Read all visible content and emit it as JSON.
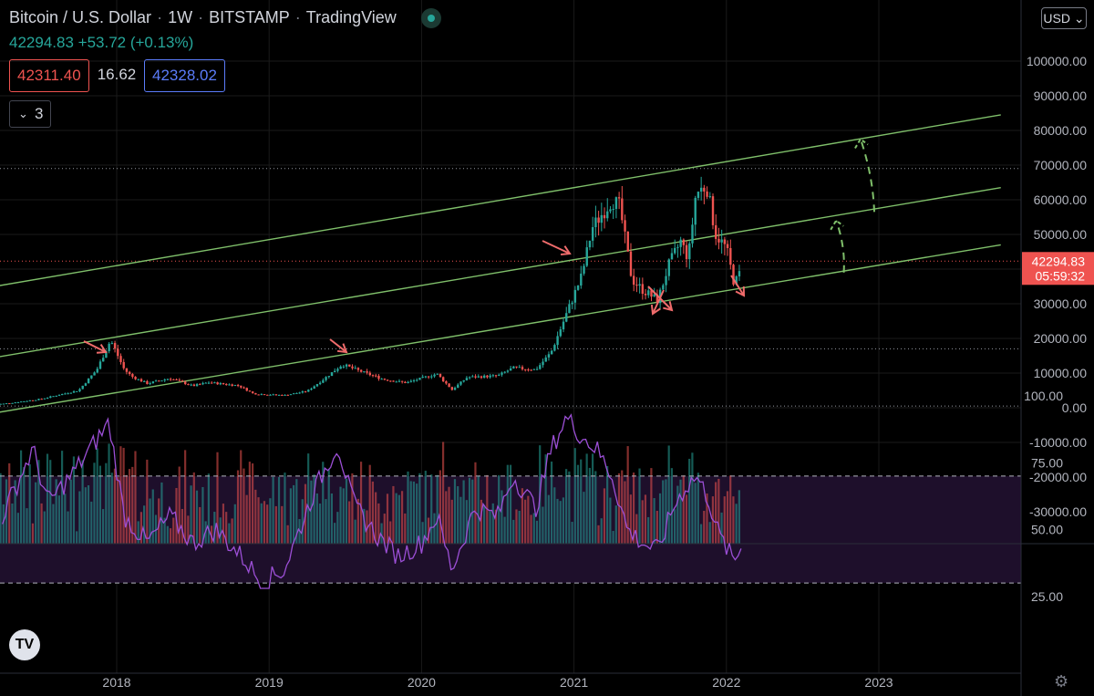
{
  "header": {
    "symbol": "Bitcoin / U.S. Dollar",
    "interval": "1W",
    "exchange": "BITSTAMP",
    "source": "TradingView",
    "sep": "·",
    "last": "42294.83",
    "change": "+53.72 (+0.13%)",
    "bid": "42311.40",
    "spread": "16.62",
    "ask": "42328.02",
    "collapse_count": "3",
    "currency": "USD"
  },
  "colors": {
    "up": "#26a69a",
    "down": "#ef5350",
    "channel": "#7fbf6a",
    "annotation": "#ef6b6b",
    "rsi": "#9c4fd6",
    "rsi_band": "#1e0f2b",
    "grid": "#1a1a1a",
    "price_tag": "#ef5350"
  },
  "icons": {
    "status": "live-dot-icon",
    "collapse": "chevron-down-icon",
    "logo": "tradingview-logo-icon",
    "settings": "gear-icon"
  },
  "chart_data": {
    "type": "candlestick",
    "timeframe": "1W",
    "x_ticks": [
      "2018",
      "2019",
      "2020",
      "2021",
      "2022",
      "2023"
    ],
    "y_ticks": [
      "100000.00",
      "90000.00",
      "80000.00",
      "70000.00",
      "60000.00",
      "50000.00",
      "40000.00",
      "30000.00",
      "20000.00",
      "10000.00",
      "0.00",
      "-10000.00",
      "-20000.00",
      "-30000.00"
    ],
    "ylim": [
      -35000,
      105000
    ],
    "last_price_label": "42294.83",
    "countdown_label": "05:59:32",
    "last_price": 42294.83,
    "price_points": [
      {
        "t": 2017.25,
        "v": 1100
      },
      {
        "t": 2017.5,
        "v": 2500
      },
      {
        "t": 2017.75,
        "v": 5000
      },
      {
        "t": 2017.87,
        "v": 11000
      },
      {
        "t": 2017.96,
        "v": 19500
      },
      {
        "t": 2018.05,
        "v": 11000
      },
      {
        "t": 2018.1,
        "v": 9000
      },
      {
        "t": 2018.2,
        "v": 7000
      },
      {
        "t": 2018.35,
        "v": 8500
      },
      {
        "t": 2018.5,
        "v": 6300
      },
      {
        "t": 2018.6,
        "v": 7300
      },
      {
        "t": 2018.8,
        "v": 6400
      },
      {
        "t": 2018.9,
        "v": 4000
      },
      {
        "t": 2019.1,
        "v": 3600
      },
      {
        "t": 2019.25,
        "v": 4800
      },
      {
        "t": 2019.35,
        "v": 8000
      },
      {
        "t": 2019.48,
        "v": 12500
      },
      {
        "t": 2019.6,
        "v": 10500
      },
      {
        "t": 2019.75,
        "v": 8200
      },
      {
        "t": 2019.9,
        "v": 7200
      },
      {
        "t": 2020.1,
        "v": 9800
      },
      {
        "t": 2020.2,
        "v": 5200
      },
      {
        "t": 2020.3,
        "v": 8800
      },
      {
        "t": 2020.5,
        "v": 9200
      },
      {
        "t": 2020.6,
        "v": 11500
      },
      {
        "t": 2020.75,
        "v": 11000
      },
      {
        "t": 2020.85,
        "v": 16000
      },
      {
        "t": 2020.95,
        "v": 27000
      },
      {
        "t": 2021.05,
        "v": 38000
      },
      {
        "t": 2021.12,
        "v": 52000
      },
      {
        "t": 2021.25,
        "v": 60000
      },
      {
        "t": 2021.3,
        "v": 58000
      },
      {
        "t": 2021.38,
        "v": 37000
      },
      {
        "t": 2021.45,
        "v": 34000
      },
      {
        "t": 2021.55,
        "v": 31000
      },
      {
        "t": 2021.62,
        "v": 41000
      },
      {
        "t": 2021.7,
        "v": 48000
      },
      {
        "t": 2021.75,
        "v": 43000
      },
      {
        "t": 2021.8,
        "v": 62000
      },
      {
        "t": 2021.87,
        "v": 64000
      },
      {
        "t": 2021.93,
        "v": 50000
      },
      {
        "t": 2022.0,
        "v": 46000
      },
      {
        "t": 2022.05,
        "v": 36000
      },
      {
        "t": 2022.08,
        "v": 37500
      },
      {
        "t": 2022.1,
        "v": 42294
      }
    ],
    "channel_lines": [
      {
        "name": "upper",
        "from": {
          "t": 2017.2,
          "v": 35000
        },
        "to": {
          "t": 2023.8,
          "v": 84500
        }
      },
      {
        "name": "middle",
        "from": {
          "t": 2017.2,
          "v": 14500
        },
        "to": {
          "t": 2023.8,
          "v": 63500
        }
      },
      {
        "name": "lower",
        "from": {
          "t": 2017.2,
          "v": -1500
        },
        "to": {
          "t": 2023.8,
          "v": 47000
        }
      }
    ],
    "horizontal_levels": [
      69000,
      17000,
      500
    ],
    "projection": [
      {
        "from": {
          "t": 2022.77,
          "v": 39000
        },
        "to": {
          "t": 2022.72,
          "v": 54000
        }
      },
      {
        "from": {
          "t": 2022.97,
          "v": 56500
        },
        "to": {
          "t": 2022.88,
          "v": 77500
        }
      }
    ],
    "rsi": {
      "y_ticks": [
        "100.00",
        "75.00",
        "50.00",
        "25.00"
      ],
      "ylim": [
        20,
        100
      ],
      "upper_band": 70,
      "lower_band": 30,
      "points": [
        {
          "t": 2017.25,
          "v": 55
        },
        {
          "t": 2017.45,
          "v": 80
        },
        {
          "t": 2017.55,
          "v": 60
        },
        {
          "t": 2017.7,
          "v": 70
        },
        {
          "t": 2017.95,
          "v": 90
        },
        {
          "t": 2018.05,
          "v": 55
        },
        {
          "t": 2018.2,
          "v": 45
        },
        {
          "t": 2018.35,
          "v": 55
        },
        {
          "t": 2018.5,
          "v": 45
        },
        {
          "t": 2018.65,
          "v": 50
        },
        {
          "t": 2018.85,
          "v": 38
        },
        {
          "t": 2018.95,
          "v": 30
        },
        {
          "t": 2019.1,
          "v": 35
        },
        {
          "t": 2019.3,
          "v": 65
        },
        {
          "t": 2019.45,
          "v": 82
        },
        {
          "t": 2019.55,
          "v": 60
        },
        {
          "t": 2019.7,
          "v": 48
        },
        {
          "t": 2019.85,
          "v": 40
        },
        {
          "t": 2020.0,
          "v": 45
        },
        {
          "t": 2020.1,
          "v": 55
        },
        {
          "t": 2020.2,
          "v": 35
        },
        {
          "t": 2020.35,
          "v": 58
        },
        {
          "t": 2020.5,
          "v": 55
        },
        {
          "t": 2020.6,
          "v": 70
        },
        {
          "t": 2020.75,
          "v": 58
        },
        {
          "t": 2020.85,
          "v": 80
        },
        {
          "t": 2020.95,
          "v": 92
        },
        {
          "t": 2021.05,
          "v": 85
        },
        {
          "t": 2021.15,
          "v": 80
        },
        {
          "t": 2021.25,
          "v": 70
        },
        {
          "t": 2021.35,
          "v": 50
        },
        {
          "t": 2021.45,
          "v": 45
        },
        {
          "t": 2021.55,
          "v": 42
        },
        {
          "t": 2021.65,
          "v": 58
        },
        {
          "t": 2021.72,
          "v": 65
        },
        {
          "t": 2021.8,
          "v": 70
        },
        {
          "t": 2021.88,
          "v": 62
        },
        {
          "t": 2021.95,
          "v": 48
        },
        {
          "t": 2022.05,
          "v": 38
        },
        {
          "t": 2022.1,
          "v": 44
        }
      ]
    }
  }
}
